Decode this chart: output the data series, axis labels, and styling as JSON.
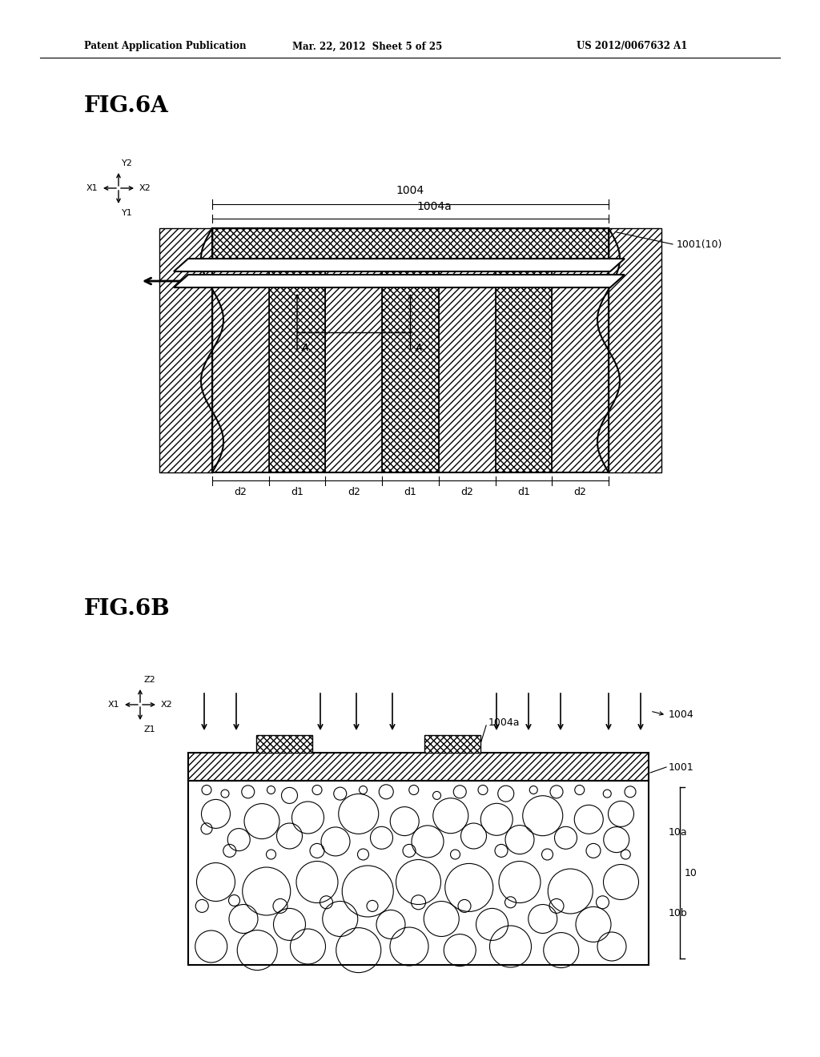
{
  "bg_color": "#ffffff",
  "header_left": "Patent Application Publication",
  "header_mid": "Mar. 22, 2012  Sheet 5 of 25",
  "header_right": "US 2012/0067632 A1",
  "fig6a_label": "FIG.6A",
  "fig6b_label": "FIG.6B",
  "label_1004": "1004",
  "label_1004a": "1004a",
  "label_1001_10": "1001(10)",
  "label_1001": "1001",
  "label_A": "A",
  "label_d1": "d1",
  "label_d2": "d2",
  "label_10a": "10a",
  "label_10b": "10b",
  "label_10": "10"
}
